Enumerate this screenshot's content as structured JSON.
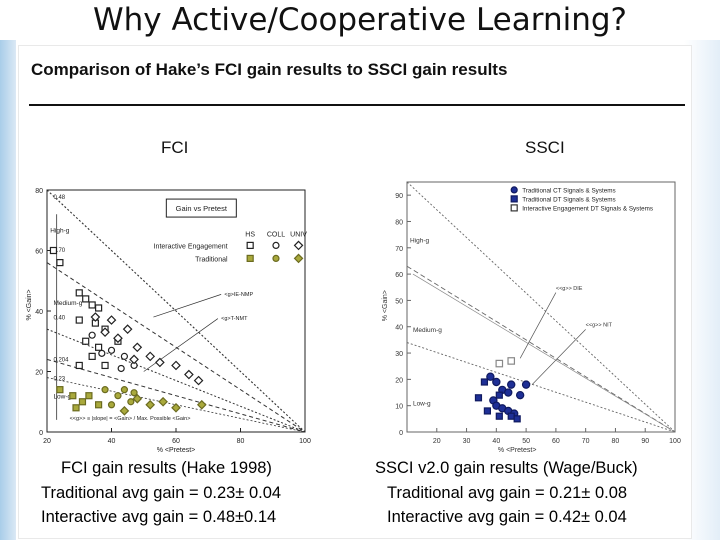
{
  "slide": {
    "title": "Why Active/Cooperative Learning?",
    "figure_heading": "Comparison of Hake’s FCI gain results to SSCI gain results"
  },
  "chart_data": [
    {
      "type": "scatter",
      "panel_title": "FCI",
      "xlabel": "% <Pretest>",
      "ylabel": "% <Gain>",
      "xlim": [
        20,
        100
      ],
      "ylim": [
        0,
        80
      ],
      "x_ticks": [
        "20",
        "40",
        "60",
        "80",
        "100"
      ],
      "y_ticks": [
        "0",
        "20",
        "40",
        "60",
        "80"
      ],
      "slope_labels": [
        "0.70",
        "0.40",
        "0.204",
        "0.23",
        "0.48"
      ],
      "region_labels": [
        "High-g",
        "Medium-g",
        "Low-g"
      ],
      "annotations": [
        "Gain vs Pretest",
        "<g>IE-NMP",
        "<g>T-NMT",
        "<<g>> ≡ |slope| = <Gain> / Max. Possible <Gain>"
      ],
      "legend": {
        "columns": [
          "HS",
          "COLL",
          "UNIV"
        ],
        "rows": [
          "Interactive Engagement",
          "Traditional"
        ]
      },
      "series": [
        {
          "name": "Interactive Engagement - HS",
          "marker": "square",
          "points": [
            [
              22,
              60
            ],
            [
              24,
              56
            ],
            [
              30,
              46
            ],
            [
              32,
              44
            ],
            [
              34,
              42
            ],
            [
              36,
              41
            ],
            [
              30,
              37
            ],
            [
              35,
              36
            ],
            [
              38,
              34
            ],
            [
              32,
              30
            ],
            [
              36,
              28
            ],
            [
              42,
              30
            ],
            [
              34,
              25
            ],
            [
              30,
              22
            ],
            [
              38,
              22
            ]
          ]
        },
        {
          "name": "Interactive Engagement - COLL",
          "marker": "circle",
          "points": [
            [
              34,
              32
            ],
            [
              40,
              27
            ],
            [
              44,
              25
            ],
            [
              47,
              22
            ],
            [
              37,
              26
            ],
            [
              43,
              21
            ]
          ]
        },
        {
          "name": "Interactive Engagement - UNIV",
          "marker": "diamond",
          "points": [
            [
              35,
              38
            ],
            [
              40,
              37
            ],
            [
              45,
              34
            ],
            [
              42,
              31
            ],
            [
              48,
              28
            ],
            [
              52,
              25
            ],
            [
              55,
              23
            ],
            [
              60,
              22
            ],
            [
              64,
              19
            ],
            [
              67,
              17
            ],
            [
              47,
              24
            ],
            [
              38,
              33
            ]
          ]
        },
        {
          "name": "Traditional - HS",
          "marker": "square",
          "points": [
            [
              24,
              14
            ],
            [
              28,
              12
            ],
            [
              31,
              10
            ],
            [
              33,
              12
            ],
            [
              36,
              9
            ],
            [
              29,
              8
            ]
          ]
        },
        {
          "name": "Traditional - COLL",
          "marker": "circle",
          "points": [
            [
              38,
              14
            ],
            [
              42,
              12
            ],
            [
              46,
              10
            ],
            [
              40,
              9
            ],
            [
              44,
              14
            ],
            [
              47,
              13
            ]
          ]
        },
        {
          "name": "Traditional - UNIV",
          "marker": "diamond",
          "points": [
            [
              48,
              11
            ],
            [
              52,
              9
            ],
            [
              56,
              10
            ],
            [
              60,
              8
            ],
            [
              68,
              9
            ],
            [
              44,
              7
            ]
          ]
        }
      ]
    },
    {
      "type": "scatter",
      "panel_title": "SSCI",
      "xlabel": "% <Pretest>",
      "ylabel": "% <Gain>",
      "xlim": [
        10,
        100
      ],
      "ylim": [
        0,
        95
      ],
      "x_ticks": [
        "20",
        "30",
        "40",
        "50",
        "60",
        "70",
        "80",
        "90",
        "100"
      ],
      "y_ticks": [
        "0",
        "10",
        "20",
        "30",
        "40",
        "50",
        "60",
        "70",
        "80",
        "90"
      ],
      "region_labels": [
        "High-g",
        "Medium-g",
        "Low-g"
      ],
      "annotations": [
        "<<g>> DIE",
        "<<g>> NIT"
      ],
      "legend": {
        "rows": [
          "Traditional CT Signals & Systems",
          "Traditional DT Signals & Systems",
          "Interactive Engagement DT Signals & Systems"
        ]
      },
      "series": [
        {
          "name": "Traditional CT Signals & Systems",
          "marker": "circle",
          "points": [
            [
              38,
              21
            ],
            [
              40,
              19
            ],
            [
              42,
              16
            ],
            [
              44,
              15
            ],
            [
              45,
              18
            ],
            [
              39,
              12
            ],
            [
              40,
              10
            ],
            [
              42,
              9
            ],
            [
              44,
              8
            ],
            [
              46,
              7
            ],
            [
              50,
              18
            ],
            [
              48,
              14
            ]
          ]
        },
        {
          "name": "Traditional DT Signals & Systems",
          "marker": "square",
          "points": [
            [
              34,
              13
            ],
            [
              37,
              8
            ],
            [
              41,
              6
            ],
            [
              45,
              6
            ],
            [
              47,
              5
            ],
            [
              36,
              19
            ],
            [
              41,
              14
            ]
          ]
        },
        {
          "name": "Interactive Engagement DT Signals & Systems",
          "marker": "square",
          "points": [
            [
              41,
              26
            ],
            [
              45,
              27
            ]
          ]
        }
      ]
    }
  ],
  "captions": {
    "left": [
      "FCI gain results (Hake 1998)",
      "Traditional avg gain = 0.23± 0.04",
      "Interactive avg gain = 0.48±0.14"
    ],
    "right": [
      "SSCI v2.0 gain results (Wage/Buck)",
      "Traditional avg gain = 0.21± 0.08",
      "Interactive avg gain = 0.42± 0.04"
    ]
  },
  "colors": {
    "ie_marker": "#222222",
    "trad_fci": "#a9a93c",
    "trad_ct": "#1e2f96",
    "trad_dt": "#1e2f96",
    "ie_dt": "#888888"
  }
}
